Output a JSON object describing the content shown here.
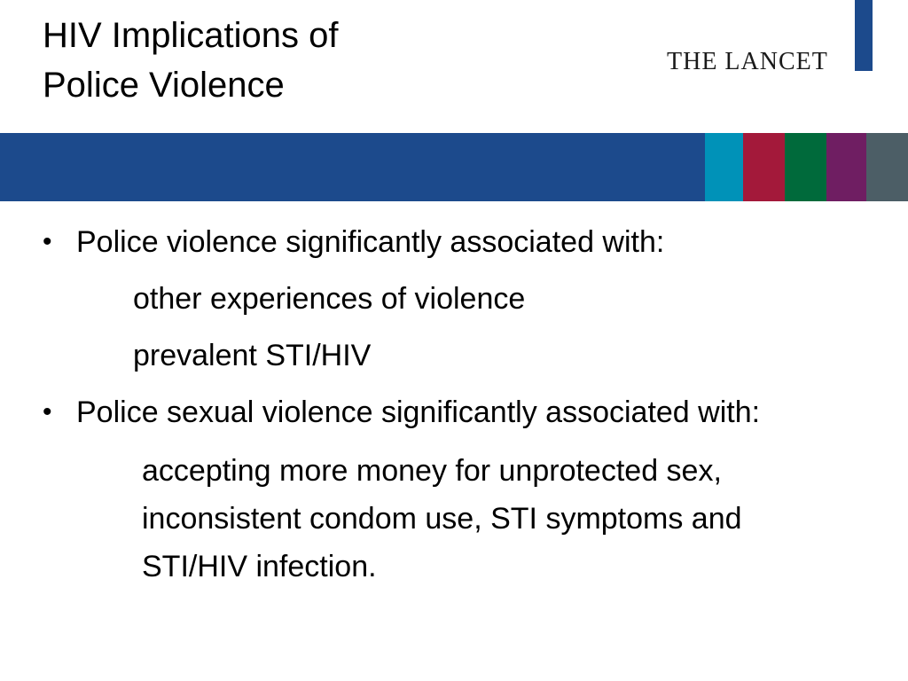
{
  "slide": {
    "title_line1": "HIV Implications of",
    "title_line2": "Police Violence",
    "brand": "THE LANCET"
  },
  "colors": {
    "band_main": "#1c4a8c",
    "brand_line": "#1c4a8c",
    "segments": [
      "#0092b8",
      "#a3193a",
      "#006a3b",
      "#6f1e62",
      "#4c5e66"
    ]
  },
  "content": {
    "bullet1": "Police violence significantly associated with:",
    "bullet1_sub1": "other experiences of violence",
    "bullet1_sub2": "prevalent STI/HIV",
    "bullet2": "Police sexual violence significantly associated with:",
    "bullet2_sub": "accepting more money for unprotected sex, inconsistent condom use, STI symptoms and STI/HIV infection."
  }
}
